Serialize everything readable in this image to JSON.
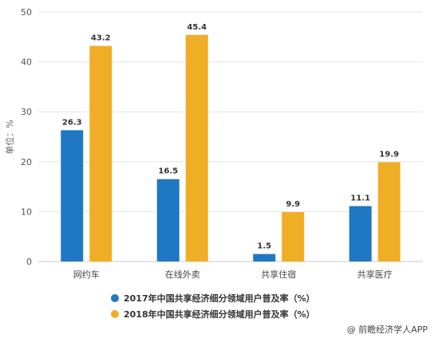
{
  "chart_data": {
    "type": "bar",
    "categories": [
      "网约车",
      "在线外卖",
      "共享住宿",
      "共享医疗"
    ],
    "series": [
      {
        "name": "2017年中国共享经济细分领域用户普及率（%）",
        "values": [
          26.3,
          16.5,
          1.5,
          11.1
        ],
        "color": "#1f78c1"
      },
      {
        "name": "2018年中国共享经济细分领域用户普及率（%）",
        "values": [
          43.2,
          45.4,
          9.9,
          19.9
        ],
        "color": "#f0ae27"
      }
    ],
    "ylabel": "单位：%",
    "ylim": [
      0,
      50
    ],
    "yticks": [
      0,
      10,
      20,
      30,
      40,
      50
    ],
    "grid": true,
    "legend": "bottom"
  },
  "source": "@ 前瞻经济学人APP"
}
